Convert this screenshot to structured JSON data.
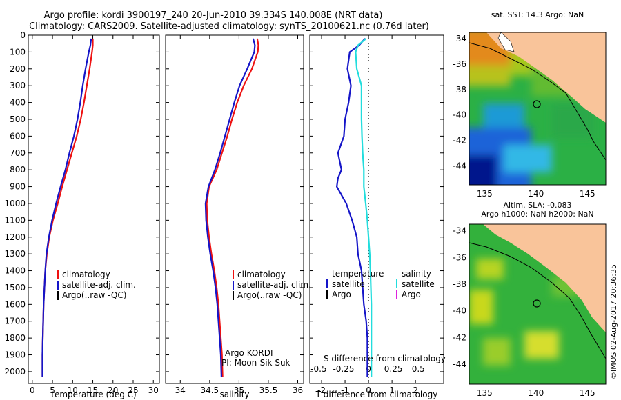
{
  "titles": {
    "line1": "Argo profile: kordi 3900197_240 20-Jun-2010 39.334S 140.008E (NRT data)",
    "line2": "Climatology: CARS2009. Satellite-adjusted climatology: synTS_20100621.nc (0.76d later)"
  },
  "side_text": "©IMOS 02-Aug-2017 20:36:35",
  "colors": {
    "climatology": "#ee1111",
    "satellite": "#1515c8",
    "argo": "#000000",
    "sal_satellite": "#22dddd",
    "sal_argo": "#dd22dd"
  },
  "chart_data": [
    {
      "type": "line",
      "name": "temperature-profile",
      "xlabel": "temperature (deg C)",
      "xlim": [
        -1,
        31.5
      ],
      "ylim": [
        2070,
        0
      ],
      "xticks": [
        "0",
        "5",
        "10",
        "15",
        "20",
        "25",
        "30"
      ],
      "yticks": [
        "0",
        "100",
        "200",
        "300",
        "400",
        "500",
        "600",
        "700",
        "800",
        "900",
        "1000",
        "1100",
        "1200",
        "1300",
        "1400",
        "1500",
        "1600",
        "1700",
        "1800",
        "1900",
        "2000"
      ],
      "legend": [
        "climatology",
        "satellite-adj. clim.",
        "Argo(..raw -QC)"
      ],
      "series": [
        {
          "name": "climatology",
          "x": [
            15.0,
            15.0,
            14.8,
            14.2,
            13.5,
            12.8,
            12.0,
            11.0,
            9.8,
            8.6,
            7.4,
            6.3,
            5.1,
            4.2,
            3.6,
            3.2,
            3.0,
            2.8,
            2.7,
            2.6,
            2.5,
            2.5
          ],
          "y": [
            20,
            60,
            100,
            200,
            300,
            400,
            500,
            600,
            700,
            800,
            900,
            1000,
            1100,
            1200,
            1300,
            1400,
            1500,
            1600,
            1700,
            1800,
            1900,
            2030
          ]
        },
        {
          "name": "satellite-adj. clim.",
          "x": [
            14.6,
            14.4,
            14.0,
            13.2,
            12.5,
            11.9,
            11.2,
            10.3,
            9.2,
            8.2,
            7.0,
            5.9,
            4.9,
            4.1,
            3.5,
            3.2,
            3.0,
            2.8,
            2.7,
            2.6,
            2.5,
            2.5
          ],
          "y": [
            20,
            60,
            100,
            200,
            300,
            400,
            500,
            600,
            700,
            800,
            900,
            1000,
            1100,
            1200,
            1300,
            1400,
            1500,
            1600,
            1700,
            1800,
            1900,
            2030
          ]
        }
      ]
    },
    {
      "type": "line",
      "name": "salinity-profile",
      "xlabel": "salinity",
      "xlim": [
        33.75,
        36.1
      ],
      "ylim": [
        2070,
        0
      ],
      "xticks": [
        "34",
        "34.5",
        "35",
        "35.5",
        "36"
      ],
      "legend": [
        "climatology",
        "satellite-adj. clim.",
        "Argo(..raw -QC)"
      ],
      "annotations": [
        "Argo KORDI",
        "PI: Moon-Sik Suk"
      ],
      "series": [
        {
          "name": "climatology",
          "x": [
            35.31,
            35.33,
            35.32,
            35.22,
            35.08,
            34.97,
            34.88,
            34.8,
            34.71,
            34.62,
            34.49,
            34.45,
            34.46,
            34.49,
            34.53,
            34.58,
            34.62,
            34.65,
            34.67,
            34.69,
            34.71,
            34.72
          ],
          "y": [
            20,
            60,
            100,
            200,
            300,
            400,
            500,
            600,
            700,
            800,
            900,
            1000,
            1100,
            1200,
            1300,
            1400,
            1500,
            1600,
            1700,
            1800,
            1900,
            2030
          ]
        },
        {
          "name": "satellite-adj. clim.",
          "x": [
            35.24,
            35.27,
            35.26,
            35.14,
            35.01,
            34.92,
            34.84,
            34.76,
            34.68,
            34.59,
            34.48,
            34.43,
            34.44,
            34.47,
            34.51,
            34.56,
            34.6,
            34.63,
            34.65,
            34.67,
            34.69,
            34.7
          ],
          "y": [
            20,
            60,
            100,
            200,
            300,
            400,
            500,
            600,
            700,
            800,
            900,
            1000,
            1100,
            1200,
            1300,
            1400,
            1500,
            1600,
            1700,
            1800,
            1900,
            2030
          ]
        }
      ]
    },
    {
      "type": "line",
      "name": "difference-profile",
      "xlabel": "T difference from climatology",
      "x2label": "S difference from climatology",
      "xlim": [
        -2.5,
        3.2
      ],
      "ylim": [
        2070,
        0
      ],
      "xticks": [
        "-2",
        "-1",
        "0",
        "1",
        "2"
      ],
      "x2ticks": [
        "-0.5",
        "-0.25",
        "0",
        "0.25",
        "0.5"
      ],
      "legend_left_title": "temperature",
      "legend_left": [
        "satellite",
        "Argo"
      ],
      "legend_right_title": "salinity",
      "legend_right": [
        "satellite",
        "Argo"
      ],
      "series": [
        {
          "name": "T satellite",
          "x": [
            -0.15,
            -0.4,
            -0.8,
            -0.9,
            -0.75,
            -0.85,
            -1.0,
            -1.05,
            -1.3,
            -1.15,
            -1.3,
            -1.35,
            -0.95,
            -0.7,
            -0.5,
            -0.45,
            -0.3,
            -0.25,
            -0.2,
            -0.1,
            -0.05,
            -0.05,
            -0.05,
            -0.05,
            -0.05
          ],
          "y": [
            20,
            60,
            100,
            200,
            300,
            400,
            500,
            600,
            700,
            800,
            850,
            900,
            1000,
            1100,
            1200,
            1300,
            1400,
            1500,
            1600,
            1700,
            1800,
            1900,
            1950,
            2000,
            2030
          ]
        },
        {
          "name": "S satellite",
          "x": [
            -0.1,
            -0.45,
            -0.55,
            -0.5,
            -0.3,
            -0.3,
            -0.3,
            -0.28,
            -0.25,
            -0.2,
            -0.2,
            -0.12,
            -0.05,
            0.0,
            0.05,
            0.08,
            0.1,
            0.12,
            0.12,
            0.12,
            0.12,
            0.12
          ],
          "y": [
            20,
            60,
            100,
            200,
            300,
            400,
            500,
            600,
            700,
            800,
            900,
            1000,
            1100,
            1200,
            1300,
            1400,
            1500,
            1600,
            1700,
            1800,
            1900,
            2030
          ]
        }
      ]
    },
    {
      "type": "heatmap",
      "name": "sst-map",
      "title": "sat. SST: 14.3  Argo: NaN",
      "xlim": [
        133.5,
        146.8
      ],
      "ylim": [
        -45.5,
        -33.5
      ],
      "xticks": [
        "135",
        "140",
        "145"
      ],
      "yticks": [
        "-34",
        "-36",
        "-38",
        "-40",
        "-42",
        "-44"
      ],
      "marker": {
        "lon": 140.0,
        "lat": -39.33
      }
    },
    {
      "type": "heatmap",
      "name": "sla-map",
      "title": "Altim. SLA: -0.083",
      "subtitle": "Argo h1000: NaN h2000: NaN",
      "xlim": [
        133.5,
        146.8
      ],
      "ylim": [
        -45.5,
        -33.5
      ],
      "xticks": [
        "135",
        "140",
        "145"
      ],
      "yticks": [
        "-34",
        "-36",
        "-38",
        "-40",
        "-42",
        "-44"
      ],
      "marker": {
        "lon": 140.0,
        "lat": -39.33
      }
    }
  ]
}
